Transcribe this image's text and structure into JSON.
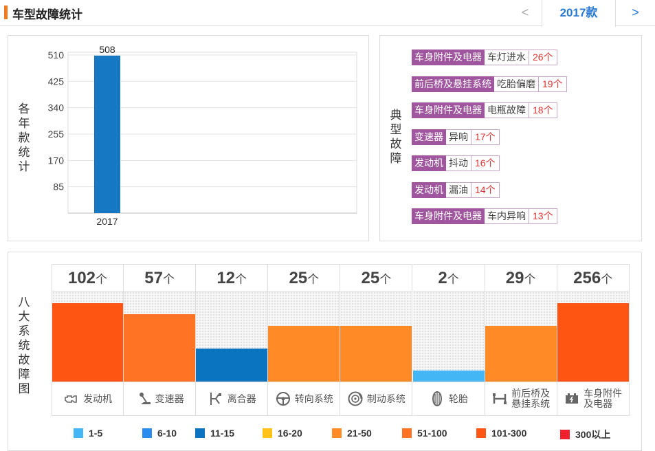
{
  "header": {
    "title": "车型故障统计",
    "prev_label": "<",
    "year_tab": "2017款",
    "next_label": ">"
  },
  "yearly_panel": {
    "ylabel": [
      "各",
      "年",
      "款",
      "统",
      "计"
    ]
  },
  "chart_data": {
    "type": "bar",
    "categories": [
      "2017"
    ],
    "values": [
      508
    ],
    "data_labels": [
      "508"
    ],
    "yticks": [
      85,
      170,
      255,
      340,
      425,
      510
    ],
    "ylim": [
      0,
      510
    ],
    "xlabel": "",
    "ylabel": "各年款统计",
    "grid": true,
    "bar_color": "#1677c2"
  },
  "typical_panel": {
    "label": [
      "典",
      "型",
      "故",
      "障"
    ],
    "faults": [
      {
        "system": "车身附件及电器",
        "symptom": "车灯进水",
        "count": "26个"
      },
      {
        "system": "前后桥及悬挂系统",
        "symptom": "吃胎偏磨",
        "count": "19个"
      },
      {
        "system": "车身附件及电器",
        "symptom": "电瓶故障",
        "count": "18个"
      },
      {
        "system": "变速器",
        "symptom": "异响",
        "count": "17个"
      },
      {
        "system": "发动机",
        "symptom": "抖动",
        "count": "16个"
      },
      {
        "system": "发动机",
        "symptom": "漏油",
        "count": "14个"
      },
      {
        "system": "车身附件及电器",
        "symptom": "车内异响",
        "count": "13个"
      }
    ]
  },
  "system_panel": {
    "label": [
      "八",
      "大",
      "系",
      "统",
      "故",
      "障",
      "图"
    ],
    "unit": "个",
    "systems": [
      {
        "count": "102",
        "level": 0.87,
        "color": "#ff5512",
        "icon": "engine-icon",
        "name": [
          "发动机"
        ]
      },
      {
        "count": "57",
        "level": 0.75,
        "color": "#ff7325",
        "icon": "gear-shift-icon",
        "name": [
          "变速器"
        ]
      },
      {
        "count": "12",
        "level": 0.37,
        "color": "#0b74c1",
        "icon": "clutch-icon",
        "name": [
          "离合器"
        ]
      },
      {
        "count": "25",
        "level": 0.62,
        "color": "#ff8a26",
        "icon": "steering-wheel-icon",
        "name": [
          "转向系统"
        ]
      },
      {
        "count": "25",
        "level": 0.62,
        "color": "#ff8a26",
        "icon": "brake-disc-icon",
        "name": [
          "制动系统"
        ]
      },
      {
        "count": "2",
        "level": 0.12,
        "color": "#43b6f5",
        "icon": "tire-icon",
        "name": [
          "轮胎"
        ]
      },
      {
        "count": "29",
        "level": 0.62,
        "color": "#ff8a26",
        "icon": "suspension-icon",
        "name": [
          "前后桥及",
          "悬挂系统"
        ]
      },
      {
        "count": "256",
        "level": 0.87,
        "color": "#ff5512",
        "icon": "battery-icon",
        "name": [
          "车身附件",
          "及电器"
        ]
      }
    ]
  },
  "legend": [
    {
      "label": "1-5",
      "color": "#43b6f5"
    },
    {
      "label": "6-10",
      "color": "#2b8cf0"
    },
    {
      "label": "11-15",
      "color": "#0b74c1"
    },
    {
      "label": "16-20",
      "color": "#ffc21a"
    },
    {
      "label": "21-50",
      "color": "#ff8a26"
    },
    {
      "label": "51-100",
      "color": "#ff7325"
    },
    {
      "label": "101-300",
      "color": "#ff5512"
    },
    {
      "label": "300以上",
      "color": "#f0202e"
    }
  ]
}
